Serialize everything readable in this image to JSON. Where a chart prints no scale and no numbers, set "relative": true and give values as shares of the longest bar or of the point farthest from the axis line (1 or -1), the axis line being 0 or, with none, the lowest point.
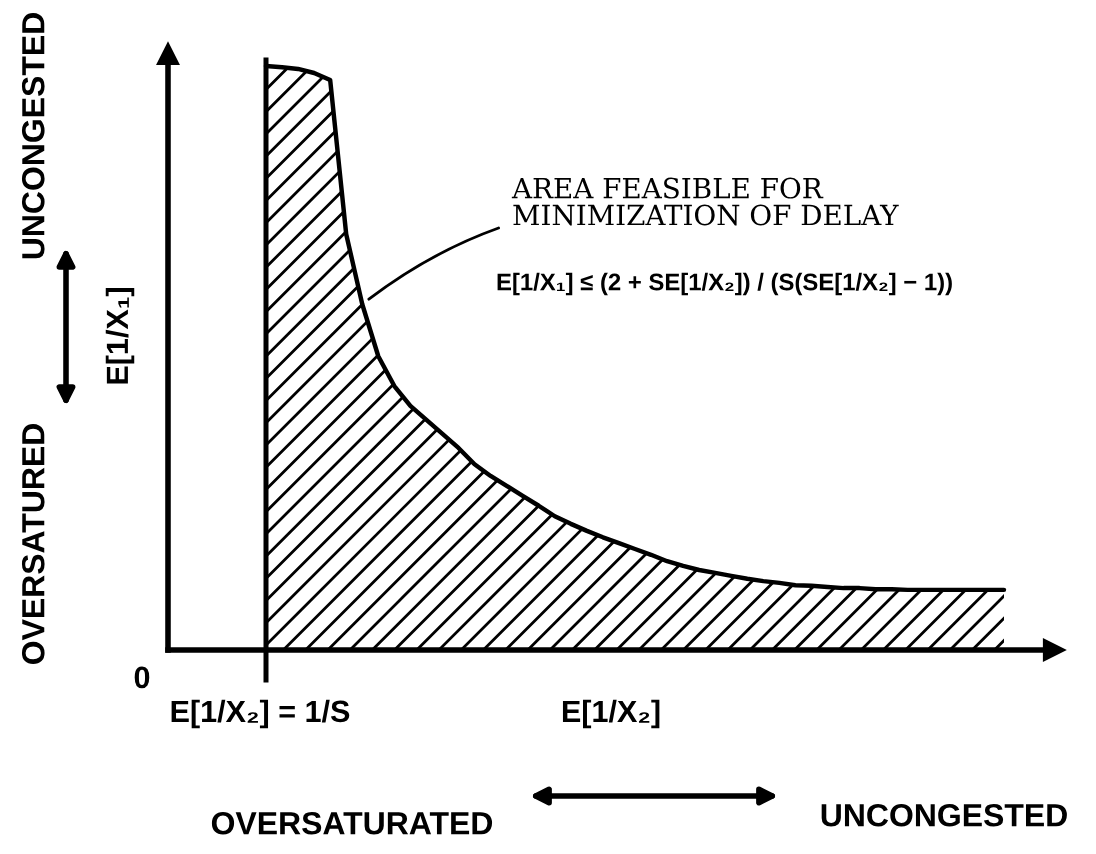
{
  "chart_data": {
    "type": "area",
    "relative": true,
    "xlabel": "E[1/X₂]",
    "ylabel": "E[1/X₁]",
    "categories": [
      null,
      null,
      null,
      null,
      null,
      null,
      null,
      null,
      null,
      null,
      null,
      null,
      null,
      null,
      null,
      null,
      null,
      null,
      null,
      null,
      null,
      null,
      null,
      null,
      null,
      null,
      null,
      null,
      null,
      null,
      null,
      null,
      null,
      null,
      null,
      null,
      null,
      null,
      null,
      null,
      null,
      null,
      null,
      null,
      null,
      null,
      null
    ],
    "series": [
      {
        "color": "#000000",
        "values": [
          1.0,
          0.998,
          0.995,
          0.988,
          0.976,
          0.712,
          0.592,
          0.503,
          0.452,
          0.418,
          0.394,
          0.37,
          0.346,
          0.318,
          0.298,
          0.281,
          0.264,
          0.247,
          0.229,
          0.216,
          0.204,
          0.193,
          0.183,
          0.173,
          0.163,
          0.152,
          0.144,
          0.137,
          0.132,
          0.127,
          0.122,
          0.118,
          0.115,
          0.111,
          0.11,
          0.108,
          0.106,
          0.106,
          0.104,
          0.104,
          0.103,
          0.103,
          0.103,
          0.103,
          0.103,
          0.103,
          0.103
        ]
      }
    ],
    "annotations": [
      "AREA FEASIBLE FOR\nMINIMIZATION OF DELAY",
      "E[1/X₁] ≤ (2 + SE[1/X₂]) / (S(SE[1/X₂] − 1))",
      "0",
      "E[1/X₂] = 1/S",
      "OVERSATURATED",
      "UNCONGESTED",
      "OVERSATURED",
      "UNCONGESTED"
    ]
  }
}
